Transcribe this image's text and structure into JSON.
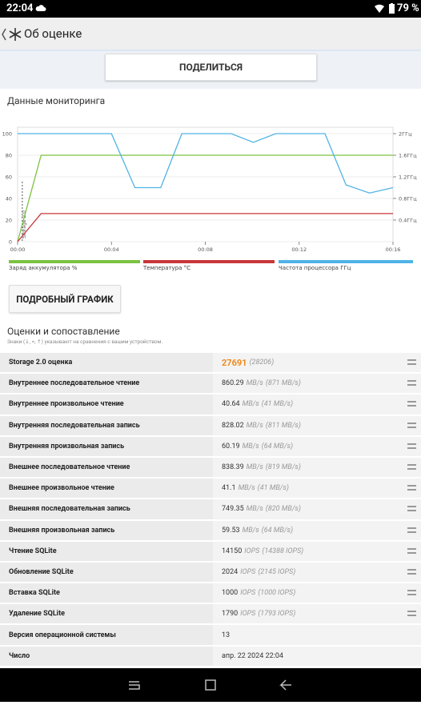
{
  "status_bar": {
    "time": "22:04",
    "battery": "79 %"
  },
  "header": {
    "title": "Об оценке"
  },
  "share_button": "ПОДЕЛИТЬСЯ",
  "monitoring_title": "Данные мониторинга",
  "chart_data": {
    "type": "line",
    "xlim": [
      0,
      16
    ],
    "xticks": [
      {
        "value": 0,
        "label": "00:00"
      },
      {
        "value": 4,
        "label": "00:04"
      },
      {
        "value": 8,
        "label": "00:08"
      },
      {
        "value": 12,
        "label": "00:12"
      },
      {
        "value": 16,
        "label": "00:16"
      }
    ],
    "ylim": [
      0,
      100
    ],
    "yticks": [
      0,
      20,
      40,
      60,
      80,
      100
    ],
    "y2lim": [
      0,
      2
    ],
    "y2ticks": [
      {
        "value": 0.4,
        "label": "0.4ГГц"
      },
      {
        "value": 0.8,
        "label": "0.8ГГц"
      },
      {
        "value": 1.2,
        "label": "1.2ГГц"
      },
      {
        "value": 1.6,
        "label": "1.6ГГц"
      },
      {
        "value": 2,
        "label": "2ГГц"
      }
    ],
    "grid": true,
    "marker": {
      "label": "Storage 2.0",
      "x": 0.2
    },
    "series": [
      {
        "name": "Заряд аккумулятора %",
        "color": "#7cc242",
        "x": [
          0,
          1,
          16
        ],
        "values": [
          0,
          80,
          80
        ]
      },
      {
        "name": "Температура °C",
        "color": "#c8373a",
        "x": [
          0,
          1,
          16
        ],
        "values": [
          0,
          26,
          26
        ]
      },
      {
        "name": "Частота процессора ГГц",
        "color": "#4fb3e6",
        "axis": "y2",
        "x": [
          0,
          4,
          5,
          6.1,
          7,
          9.1,
          10.05,
          11,
          13.1,
          14,
          15,
          16
        ],
        "values": [
          2,
          2,
          1,
          1,
          2,
          2,
          1.84,
          2,
          2,
          1.05,
          0.9,
          1
        ]
      }
    ]
  },
  "detail_button": "ПОДРОБНЫЙ ГРАФИК",
  "scores": {
    "title": "Оценки и сопоставление",
    "note": "Знаки (↓, ≈, ↑) указывают на сравнения с вашим устройством.",
    "table": {
      "rows": [
        [
          "Storage 2.0 оценка",
          "27691",
          "(28206)"
        ],
        [
          "Внутреннее последовательное чтение",
          "860.29",
          "MB/s",
          "(871 MB/s)"
        ],
        [
          "Внутреннее произвольное чтение",
          "40.64",
          "MB/s",
          "(41 MB/s)"
        ],
        [
          "Внутренняя последовательная запись",
          "828.02",
          "MB/s",
          "(811 MB/s)"
        ],
        [
          "Внутренняя произвольная запись",
          "60.19",
          "MB/s",
          "(64 MB/s)"
        ],
        [
          "Внешнее последовательное чтение",
          "838.39",
          "MB/s",
          "(819 MB/s)"
        ],
        [
          "Внешнее произвольное чтение",
          "41.1",
          "MB/s",
          "(41 MB/s)"
        ],
        [
          "Внешняя последовательная запись",
          "749.35",
          "MB/s",
          "(820 MB/s)"
        ],
        [
          "Внешняя произвольная запись",
          "59.53",
          "MB/s",
          "(64 MB/s)"
        ],
        [
          "Чтение SQLite",
          "14150",
          "IOPS",
          "(14388 IOPS)"
        ],
        [
          "Обновление SQLite",
          "2024",
          "IOPS",
          "(2145 IOPS)"
        ],
        [
          "Вставка SQLite",
          "1000",
          "IOPS",
          "(1000 IOPS)"
        ],
        [
          "Удаление SQLite",
          "1790",
          "IOPS",
          "(1793 IOPS)"
        ],
        [
          "Версия операционной системы",
          "13"
        ],
        [
          "Число",
          "апр. 22 2024 22:04"
        ]
      ]
    }
  }
}
